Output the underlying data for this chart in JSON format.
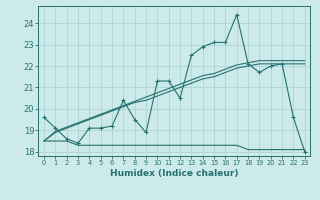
{
  "xlabel": "Humidex (Indice chaleur)",
  "x_values": [
    0,
    1,
    2,
    3,
    4,
    5,
    6,
    7,
    8,
    9,
    10,
    11,
    12,
    13,
    14,
    15,
    16,
    17,
    18,
    19,
    20,
    21,
    22,
    23
  ],
  "line1_y": [
    19.6,
    19.1,
    18.6,
    18.4,
    19.1,
    19.1,
    19.2,
    20.4,
    19.5,
    18.9,
    21.3,
    21.3,
    20.5,
    22.5,
    22.9,
    23.1,
    23.1,
    24.4,
    22.1,
    21.7,
    22.0,
    22.1,
    19.6,
    18.0
  ],
  "line2_y": [
    18.5,
    18.5,
    18.5,
    18.3,
    18.3,
    18.3,
    18.3,
    18.3,
    18.3,
    18.3,
    18.3,
    18.3,
    18.3,
    18.3,
    18.3,
    18.3,
    18.3,
    18.3,
    18.1,
    18.1,
    18.1,
    18.1,
    18.1,
    18.1
  ],
  "line3_y": [
    18.5,
    18.9,
    19.1,
    19.3,
    19.5,
    19.7,
    19.9,
    20.1,
    20.3,
    20.4,
    20.6,
    20.8,
    21.0,
    21.2,
    21.4,
    21.5,
    21.7,
    21.9,
    22.0,
    22.1,
    22.1,
    22.1,
    22.1,
    22.1
  ],
  "line4_y": [
    18.5,
    18.95,
    19.15,
    19.35,
    19.55,
    19.75,
    19.95,
    20.15,
    20.35,
    20.55,
    20.75,
    20.95,
    21.15,
    21.35,
    21.55,
    21.65,
    21.85,
    22.05,
    22.15,
    22.25,
    22.25,
    22.25,
    22.25,
    22.25
  ],
  "line_color": "#267070",
  "bg_color": "#cdeaea",
  "grid_color": "#aed4d4",
  "ylim": [
    17.8,
    24.8
  ],
  "yticks": [
    18,
    19,
    20,
    21,
    22,
    23,
    24
  ],
  "xlim": [
    -0.5,
    23.5
  ],
  "xticks": [
    0,
    1,
    2,
    3,
    4,
    5,
    6,
    7,
    8,
    9,
    10,
    11,
    12,
    13,
    14,
    15,
    16,
    17,
    18,
    19,
    20,
    21,
    22,
    23
  ],
  "xtick_labels": [
    "0",
    "1",
    "2",
    "3",
    "4",
    "5",
    "6",
    "7",
    "8",
    "9",
    "10",
    "11",
    "12",
    "13",
    "14",
    "15",
    "16",
    "17",
    "18",
    "19",
    "20",
    "21",
    "22",
    "23"
  ]
}
